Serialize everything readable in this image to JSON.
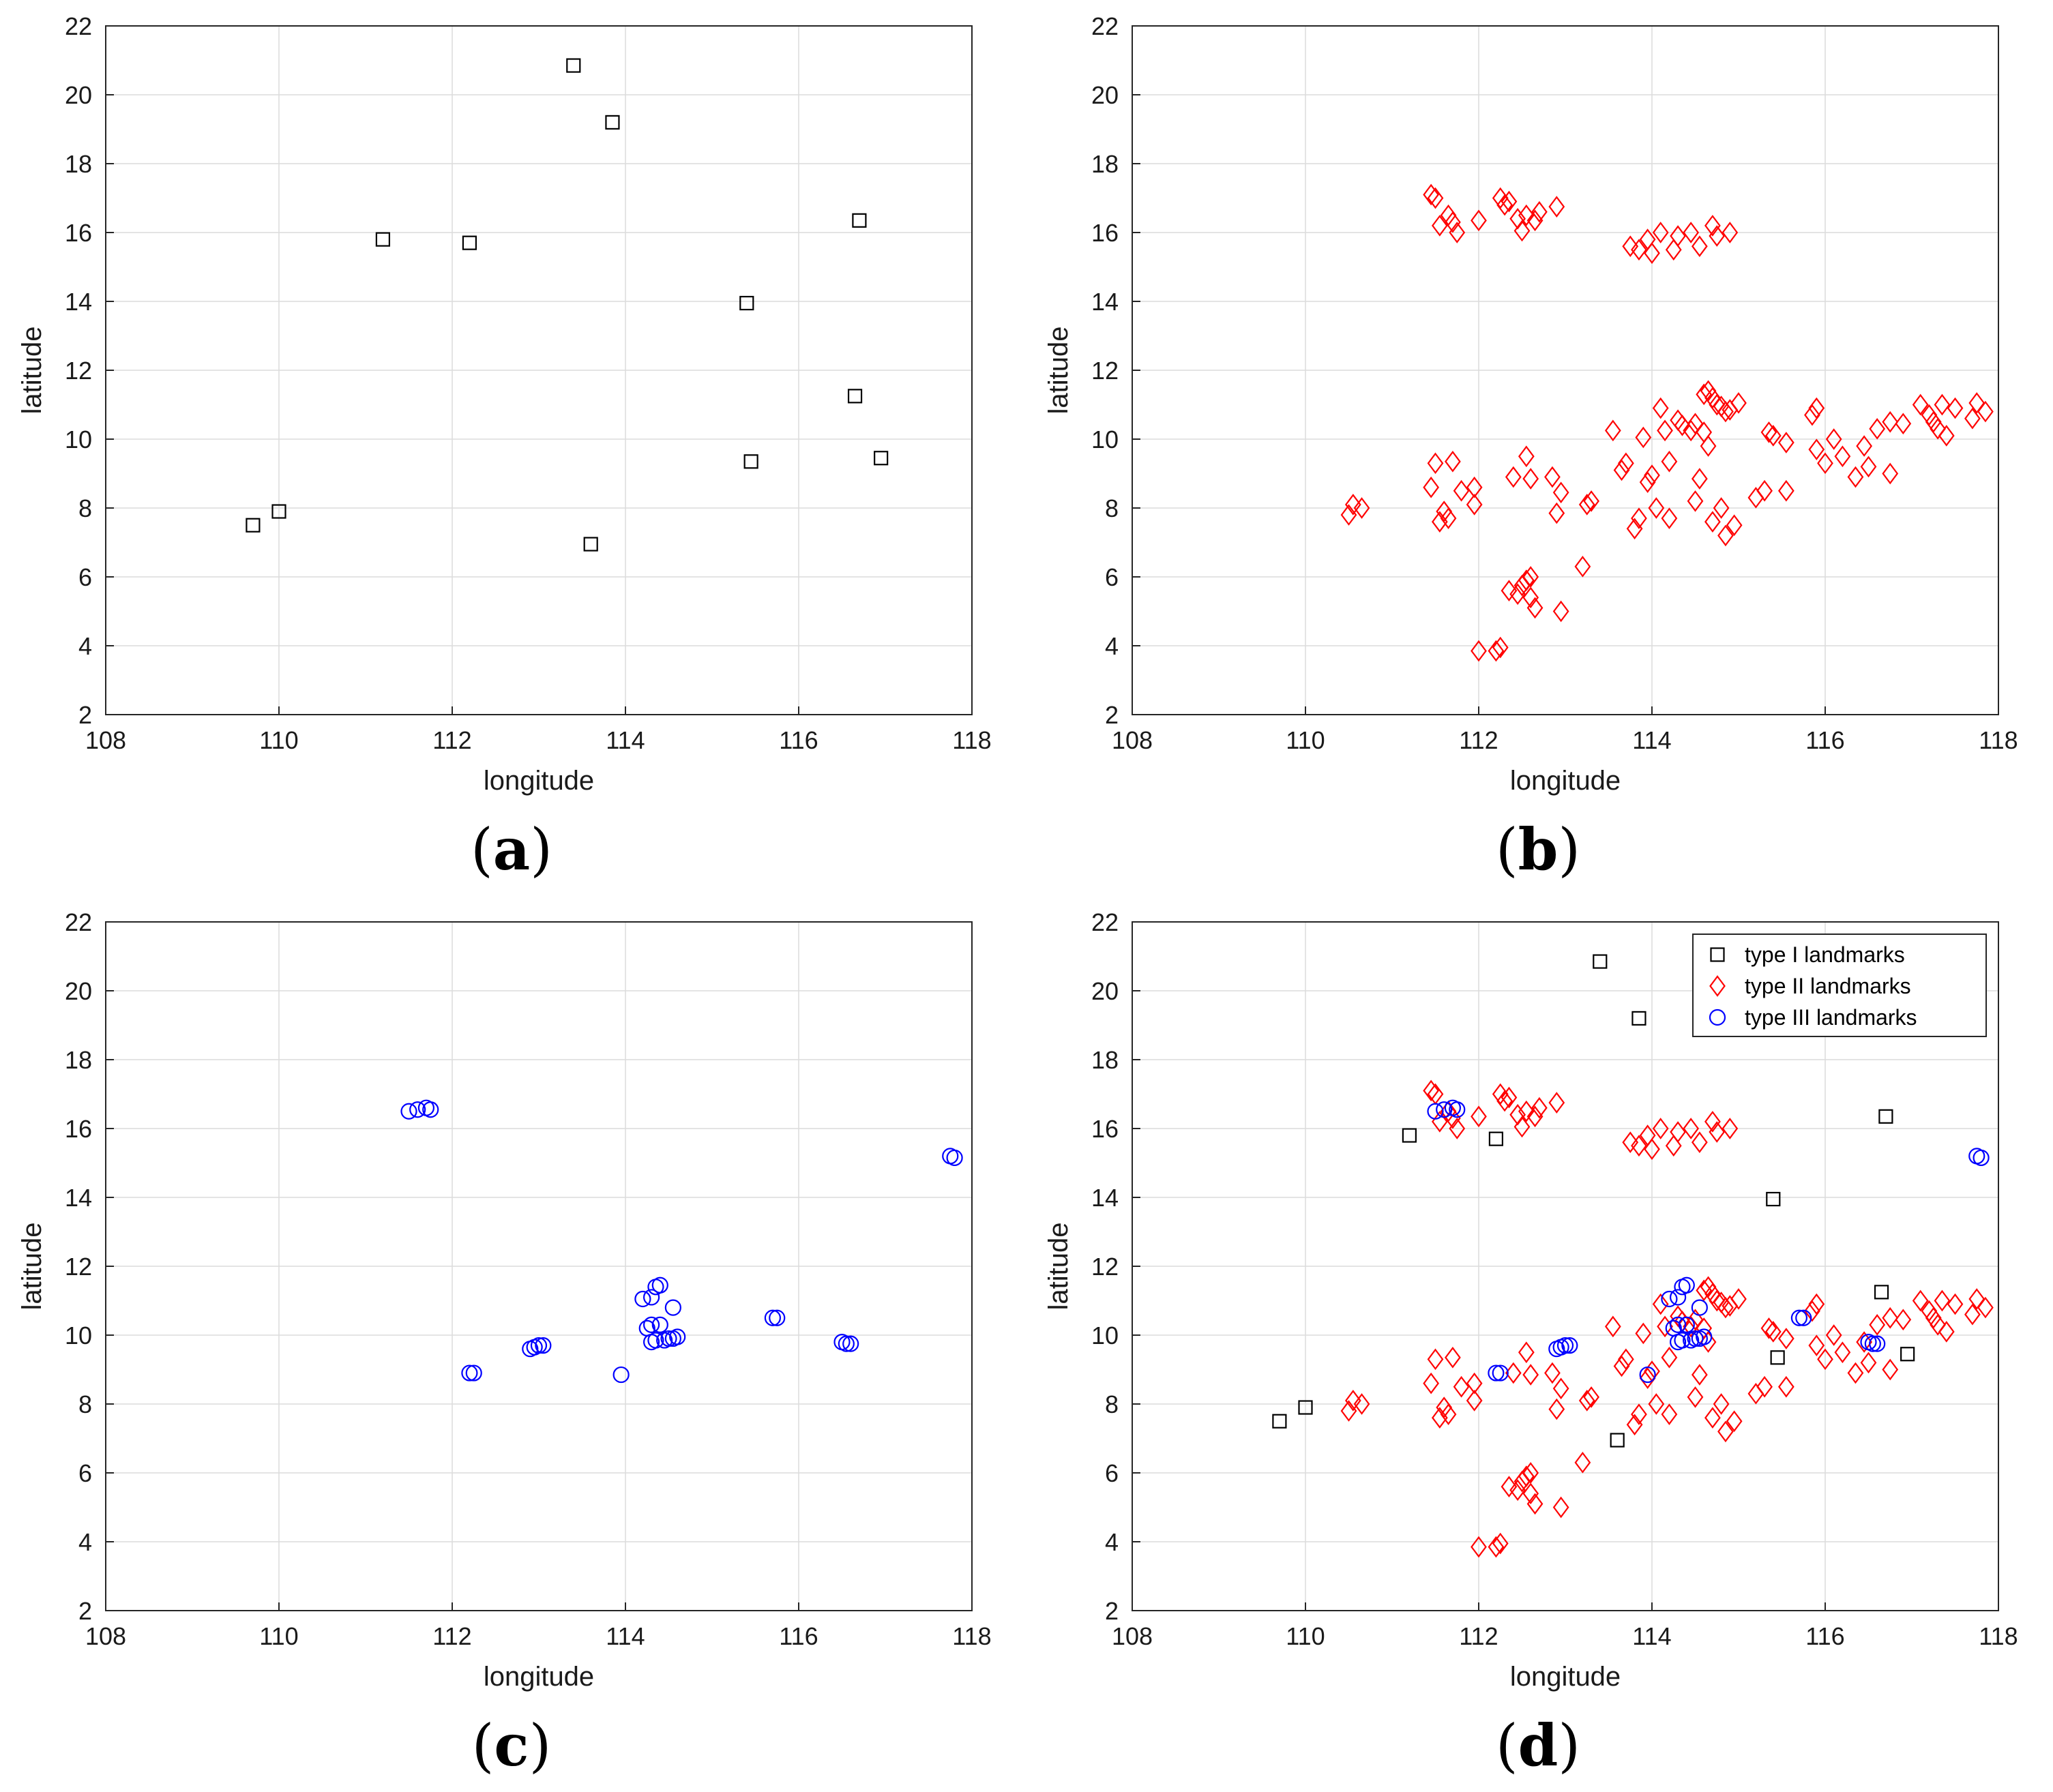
{
  "chart_data": [
    {
      "id": "a",
      "type": "scatter",
      "caption": "a",
      "xlabel": "longitude",
      "ylabel": "latitude",
      "xlim": [
        108,
        118
      ],
      "ylim": [
        2,
        22
      ],
      "xticks": [
        108,
        110,
        112,
        114,
        116,
        118
      ],
      "yticks": [
        2,
        4,
        6,
        8,
        10,
        12,
        14,
        16,
        18,
        20,
        22
      ],
      "grid": true,
      "series": [
        {
          "name": "type I landmarks",
          "marker": "square",
          "color": "#000000",
          "points": [
            [
              109.7,
              7.5
            ],
            [
              110.0,
              7.9
            ],
            [
              111.2,
              15.8
            ],
            [
              112.2,
              15.7
            ],
            [
              113.4,
              20.85
            ],
            [
              113.85,
              19.2
            ],
            [
              113.6,
              6.95
            ],
            [
              115.4,
              13.95
            ],
            [
              115.45,
              9.35
            ],
            [
              116.65,
              11.25
            ],
            [
              116.7,
              16.35
            ],
            [
              116.95,
              9.45
            ]
          ]
        }
      ]
    },
    {
      "id": "b",
      "type": "scatter",
      "caption": "b",
      "xlabel": "longitude",
      "ylabel": "latitude",
      "xlim": [
        108,
        118
      ],
      "ylim": [
        2,
        22
      ],
      "xticks": [
        108,
        110,
        112,
        114,
        116,
        118
      ],
      "yticks": [
        2,
        4,
        6,
        8,
        10,
        12,
        14,
        16,
        18,
        20,
        22
      ],
      "grid": true,
      "series": [
        {
          "name": "type II landmarks",
          "marker": "diamond",
          "color": "#ff0000",
          "points": [
            [
              111.45,
              17.1
            ],
            [
              111.5,
              17.0
            ],
            [
              111.55,
              16.2
            ],
            [
              111.65,
              16.5
            ],
            [
              111.7,
              16.3
            ],
            [
              111.75,
              16.0
            ],
            [
              112.0,
              16.35
            ],
            [
              112.25,
              17.0
            ],
            [
              112.3,
              16.8
            ],
            [
              112.35,
              16.9
            ],
            [
              112.45,
              16.4
            ],
            [
              112.5,
              16.05
            ],
            [
              112.55,
              16.5
            ],
            [
              112.65,
              16.35
            ],
            [
              112.7,
              16.6
            ],
            [
              112.9,
              16.75
            ],
            [
              113.75,
              15.6
            ],
            [
              113.85,
              15.5
            ],
            [
              113.95,
              15.8
            ],
            [
              114.0,
              15.4
            ],
            [
              114.1,
              16.0
            ],
            [
              114.25,
              15.5
            ],
            [
              114.3,
              15.9
            ],
            [
              114.45,
              16.0
            ],
            [
              114.55,
              15.6
            ],
            [
              114.7,
              16.2
            ],
            [
              114.75,
              15.9
            ],
            [
              114.9,
              16.0
            ],
            [
              110.5,
              7.8
            ],
            [
              110.55,
              8.1
            ],
            [
              110.65,
              8.0
            ],
            [
              111.45,
              8.6
            ],
            [
              111.5,
              9.3
            ],
            [
              111.55,
              7.6
            ],
            [
              111.6,
              7.9
            ],
            [
              111.65,
              7.7
            ],
            [
              111.7,
              9.35
            ],
            [
              111.8,
              8.5
            ],
            [
              111.95,
              8.6
            ],
            [
              111.95,
              8.1
            ],
            [
              112.0,
              3.85
            ],
            [
              112.2,
              3.85
            ],
            [
              112.25,
              3.95
            ],
            [
              112.35,
              5.6
            ],
            [
              112.45,
              5.5
            ],
            [
              112.5,
              5.75
            ],
            [
              112.55,
              5.9
            ],
            [
              112.6,
              6.0
            ],
            [
              112.6,
              5.4
            ],
            [
              112.65,
              5.1
            ],
            [
              112.55,
              9.5
            ],
            [
              112.6,
              8.85
            ],
            [
              112.4,
              8.9
            ],
            [
              112.85,
              8.9
            ],
            [
              112.9,
              7.85
            ],
            [
              112.95,
              8.45
            ],
            [
              112.95,
              5.0
            ],
            [
              113.2,
              6.3
            ],
            [
              113.25,
              8.1
            ],
            [
              113.3,
              8.2
            ],
            [
              113.55,
              10.25
            ],
            [
              113.65,
              9.1
            ],
            [
              113.7,
              9.3
            ],
            [
              113.8,
              7.4
            ],
            [
              113.85,
              7.7
            ],
            [
              113.9,
              10.05
            ],
            [
              113.95,
              8.75
            ],
            [
              114.0,
              8.95
            ],
            [
              114.05,
              8.0
            ],
            [
              114.1,
              10.9
            ],
            [
              114.15,
              10.25
            ],
            [
              114.2,
              9.35
            ],
            [
              114.2,
              7.7
            ],
            [
              114.3,
              10.55
            ],
            [
              114.35,
              10.4
            ],
            [
              114.45,
              10.25
            ],
            [
              114.5,
              10.45
            ],
            [
              114.55,
              8.85
            ],
            [
              114.6,
              10.2
            ],
            [
              114.6,
              11.3
            ],
            [
              114.65,
              11.4
            ],
            [
              114.7,
              11.2
            ],
            [
              114.75,
              11.0
            ],
            [
              114.8,
              10.95
            ],
            [
              114.85,
              10.8
            ],
            [
              114.9,
              10.85
            ],
            [
              115.0,
              11.05
            ],
            [
              114.65,
              9.8
            ],
            [
              114.5,
              8.2
            ],
            [
              114.7,
              7.6
            ],
            [
              114.8,
              8.0
            ],
            [
              114.85,
              7.2
            ],
            [
              114.95,
              7.5
            ],
            [
              115.2,
              8.3
            ],
            [
              115.3,
              8.5
            ],
            [
              115.35,
              10.2
            ],
            [
              115.4,
              10.1
            ],
            [
              115.55,
              9.9
            ],
            [
              115.55,
              8.5
            ],
            [
              115.85,
              10.7
            ],
            [
              115.9,
              10.9
            ],
            [
              115.9,
              9.7
            ],
            [
              116.0,
              9.3
            ],
            [
              116.1,
              10.0
            ],
            [
              116.2,
              9.5
            ],
            [
              116.35,
              8.9
            ],
            [
              116.45,
              9.8
            ],
            [
              116.5,
              9.2
            ],
            [
              116.6,
              10.3
            ],
            [
              116.75,
              10.5
            ],
            [
              116.75,
              9.0
            ],
            [
              116.9,
              10.45
            ],
            [
              117.1,
              11.0
            ],
            [
              117.2,
              10.7
            ],
            [
              117.25,
              10.5
            ],
            [
              117.3,
              10.3
            ],
            [
              117.35,
              11.0
            ],
            [
              117.4,
              10.1
            ],
            [
              117.5,
              10.9
            ],
            [
              117.7,
              10.6
            ],
            [
              117.75,
              11.05
            ],
            [
              117.85,
              10.8
            ]
          ]
        }
      ]
    },
    {
      "id": "c",
      "type": "scatter",
      "caption": "c",
      "xlabel": "longitude",
      "ylabel": "latitude",
      "xlim": [
        108,
        118
      ],
      "ylim": [
        2,
        22
      ],
      "xticks": [
        108,
        110,
        112,
        114,
        116,
        118
      ],
      "yticks": [
        2,
        4,
        6,
        8,
        10,
        12,
        14,
        16,
        18,
        20,
        22
      ],
      "grid": true,
      "series": [
        {
          "name": "type III landmarks",
          "marker": "circle",
          "color": "#0000ff",
          "points": [
            [
              111.5,
              16.5
            ],
            [
              111.6,
              16.55
            ],
            [
              111.7,
              16.6
            ],
            [
              111.75,
              16.55
            ],
            [
              112.2,
              8.9
            ],
            [
              112.25,
              8.9
            ],
            [
              112.9,
              9.6
            ],
            [
              112.95,
              9.65
            ],
            [
              113.0,
              9.7
            ],
            [
              113.05,
              9.7
            ],
            [
              113.95,
              8.85
            ],
            [
              114.2,
              11.05
            ],
            [
              114.3,
              11.1
            ],
            [
              114.35,
              11.4
            ],
            [
              114.4,
              11.45
            ],
            [
              114.25,
              10.2
            ],
            [
              114.3,
              10.3
            ],
            [
              114.4,
              10.3
            ],
            [
              114.3,
              9.8
            ],
            [
              114.35,
              9.85
            ],
            [
              114.45,
              9.85
            ],
            [
              114.5,
              9.9
            ],
            [
              114.55,
              9.9
            ],
            [
              114.6,
              9.95
            ],
            [
              114.55,
              10.8
            ],
            [
              115.7,
              10.5
            ],
            [
              115.75,
              10.5
            ],
            [
              116.5,
              9.8
            ],
            [
              116.55,
              9.75
            ],
            [
              116.6,
              9.75
            ],
            [
              117.75,
              15.2
            ],
            [
              117.8,
              15.15
            ]
          ]
        }
      ]
    },
    {
      "id": "d",
      "type": "scatter",
      "caption": "d",
      "xlabel": "longitude",
      "ylabel": "latitude",
      "xlim": [
        108,
        118
      ],
      "ylim": [
        2,
        22
      ],
      "xticks": [
        108,
        110,
        112,
        114,
        116,
        118
      ],
      "yticks": [
        2,
        4,
        6,
        8,
        10,
        12,
        14,
        16,
        18,
        20,
        22
      ],
      "grid": true,
      "legend": {
        "placement": "top-right",
        "entries": [
          "type I landmarks",
          "type II landmarks",
          "type III landmarks"
        ]
      },
      "series_refs": [
        "a",
        "b",
        "c"
      ]
    }
  ]
}
